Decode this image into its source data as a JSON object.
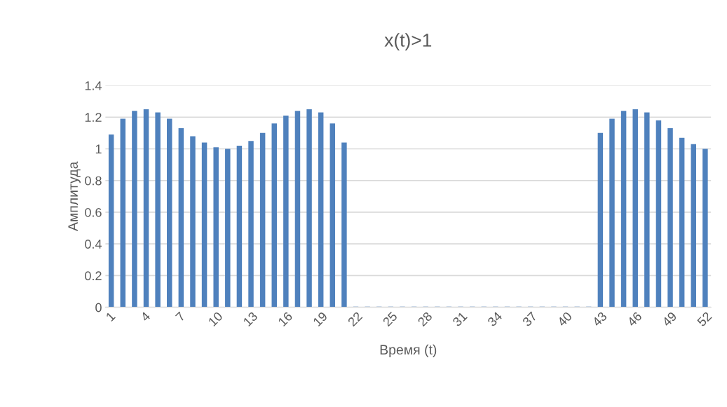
{
  "chart_data": {
    "type": "bar",
    "title": "x(t)>1",
    "xlabel": "Время (t)",
    "ylabel": "Амплитуда",
    "categories": [
      "1",
      null,
      null,
      "4",
      null,
      null,
      "7",
      null,
      null,
      "10",
      null,
      null,
      "13",
      null,
      null,
      "16",
      null,
      null,
      "19",
      null,
      null,
      "22",
      null,
      null,
      "25",
      null,
      null,
      "28",
      null,
      null,
      "31",
      null,
      null,
      "34",
      null,
      null,
      "37",
      null,
      null,
      "40",
      null,
      null,
      "43",
      null,
      null,
      "46",
      null,
      null,
      "49",
      null,
      null,
      "52"
    ],
    "values": [
      1.09,
      1.19,
      1.24,
      1.25,
      1.23,
      1.19,
      1.13,
      1.08,
      1.04,
      1.01,
      1.0,
      1.02,
      1.05,
      1.1,
      1.16,
      1.21,
      1.24,
      1.25,
      1.23,
      1.16,
      1.04,
      0,
      0,
      0,
      0,
      0,
      0,
      0,
      0,
      0,
      0,
      0,
      0,
      0,
      0,
      0,
      0,
      0,
      0,
      0,
      0,
      0,
      1.1,
      1.19,
      1.24,
      1.25,
      1.23,
      1.18,
      1.13,
      1.07,
      1.03,
      1.0
    ],
    "color": "#4f81bd",
    "ylim": [
      0,
      1.4
    ],
    "yticks": [
      0,
      {
        "value": 0.2,
        "label": "0.2"
      },
      {
        "value": 0.4,
        "label": "0.4"
      },
      {
        "value": 0.6,
        "label": "0.6"
      },
      {
        "value": 0.8,
        "label": "0.8"
      },
      1,
      {
        "value": 1.2,
        "label": "1.2"
      },
      {
        "value": 1.4,
        "label": "1.4"
      }
    ],
    "grid": "y"
  }
}
